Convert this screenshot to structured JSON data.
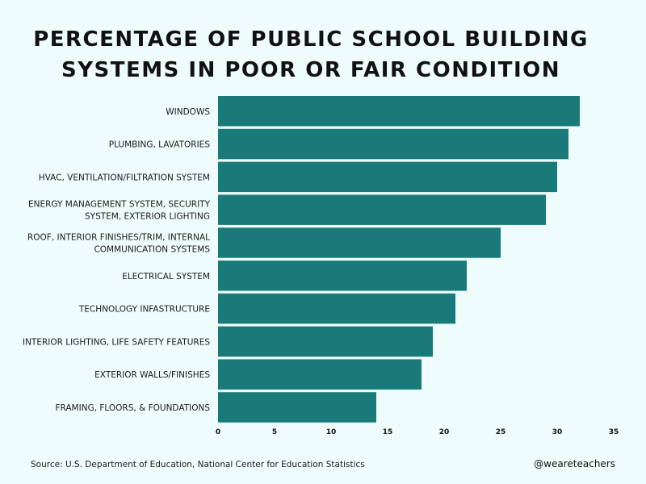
{
  "chart_data": {
    "type": "bar",
    "orientation": "horizontal",
    "title_lines": [
      "PERCENTAGE OF PUBLIC SCHOOL BUILDING",
      "SYSTEMS IN POOR OR FAIR CONDITION"
    ],
    "categories": [
      [
        "WINDOWS"
      ],
      [
        "PLUMBING, LAVATORIES"
      ],
      [
        "HVAC, VENTILATION/FILTRATION SYSTEM"
      ],
      [
        "ENERGY MANAGEMENT SYSTEM, SECURITY",
        "SYSTEM, EXTERIOR LIGHTING"
      ],
      [
        "ROOF, INTERIOR FINISHES/TRIM, INTERNAL",
        "COMMUNICATION SYSTEMS"
      ],
      [
        "ELECTRICAL SYSTEM"
      ],
      [
        "TECHNOLOGY INFASTRUCTURE"
      ],
      [
        "INTERIOR LIGHTING, LIFE SAFETY FEATURES"
      ],
      [
        "EXTERIOR WALLS/FINISHES"
      ],
      [
        "FRAMING, FLOORS, & FOUNDATIONS"
      ]
    ],
    "values": [
      32,
      31,
      30,
      29,
      25,
      22,
      21,
      19,
      18,
      14
    ],
    "xlim": [
      0,
      35
    ],
    "xticks": [
      "0",
      "5",
      "10",
      "15",
      "20",
      "25",
      "30",
      "35"
    ],
    "bar_color": "#1a7a7a",
    "grid": false
  },
  "footer": {
    "source": "Source: U.S. Department of Education, National Center for Education Statistics",
    "handle": "@weareteachers"
  }
}
